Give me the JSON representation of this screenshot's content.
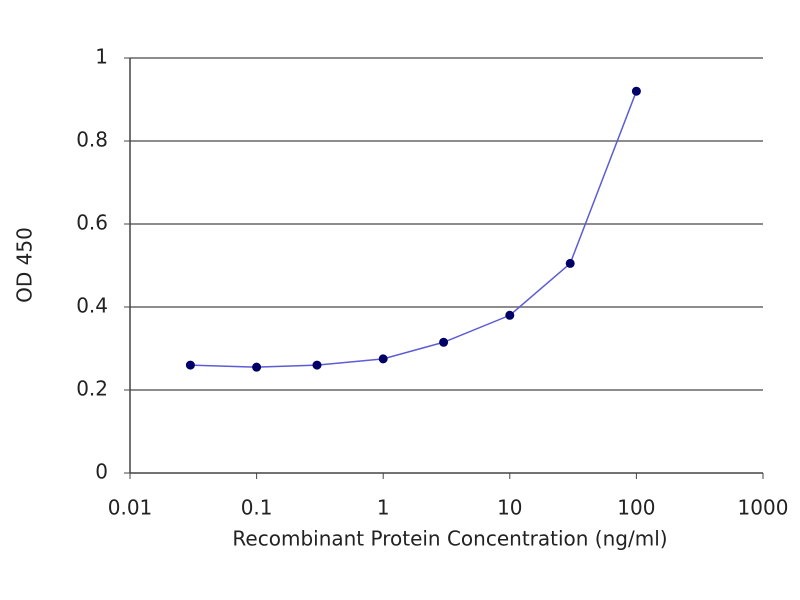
{
  "chart_data": {
    "type": "line",
    "x": [
      0.03,
      0.1,
      0.3,
      1,
      3,
      10,
      30,
      100
    ],
    "values": [
      0.26,
      0.255,
      0.26,
      0.275,
      0.315,
      0.38,
      0.505,
      0.92
    ],
    "color": "#5c5cd6",
    "marker_color": "#000066",
    "x_label": "Recombinant Protein Concentration (ng/ml)",
    "y_label": "OD 450",
    "xscale": "log",
    "xlim": [
      0.01,
      1000
    ],
    "xticks": [
      0.01,
      0.1,
      1,
      10,
      100,
      1000
    ],
    "ylim": [
      0,
      1
    ],
    "yticks": [
      0,
      0.2,
      0.4,
      0.6,
      0.8,
      1
    ],
    "grid": true
  }
}
